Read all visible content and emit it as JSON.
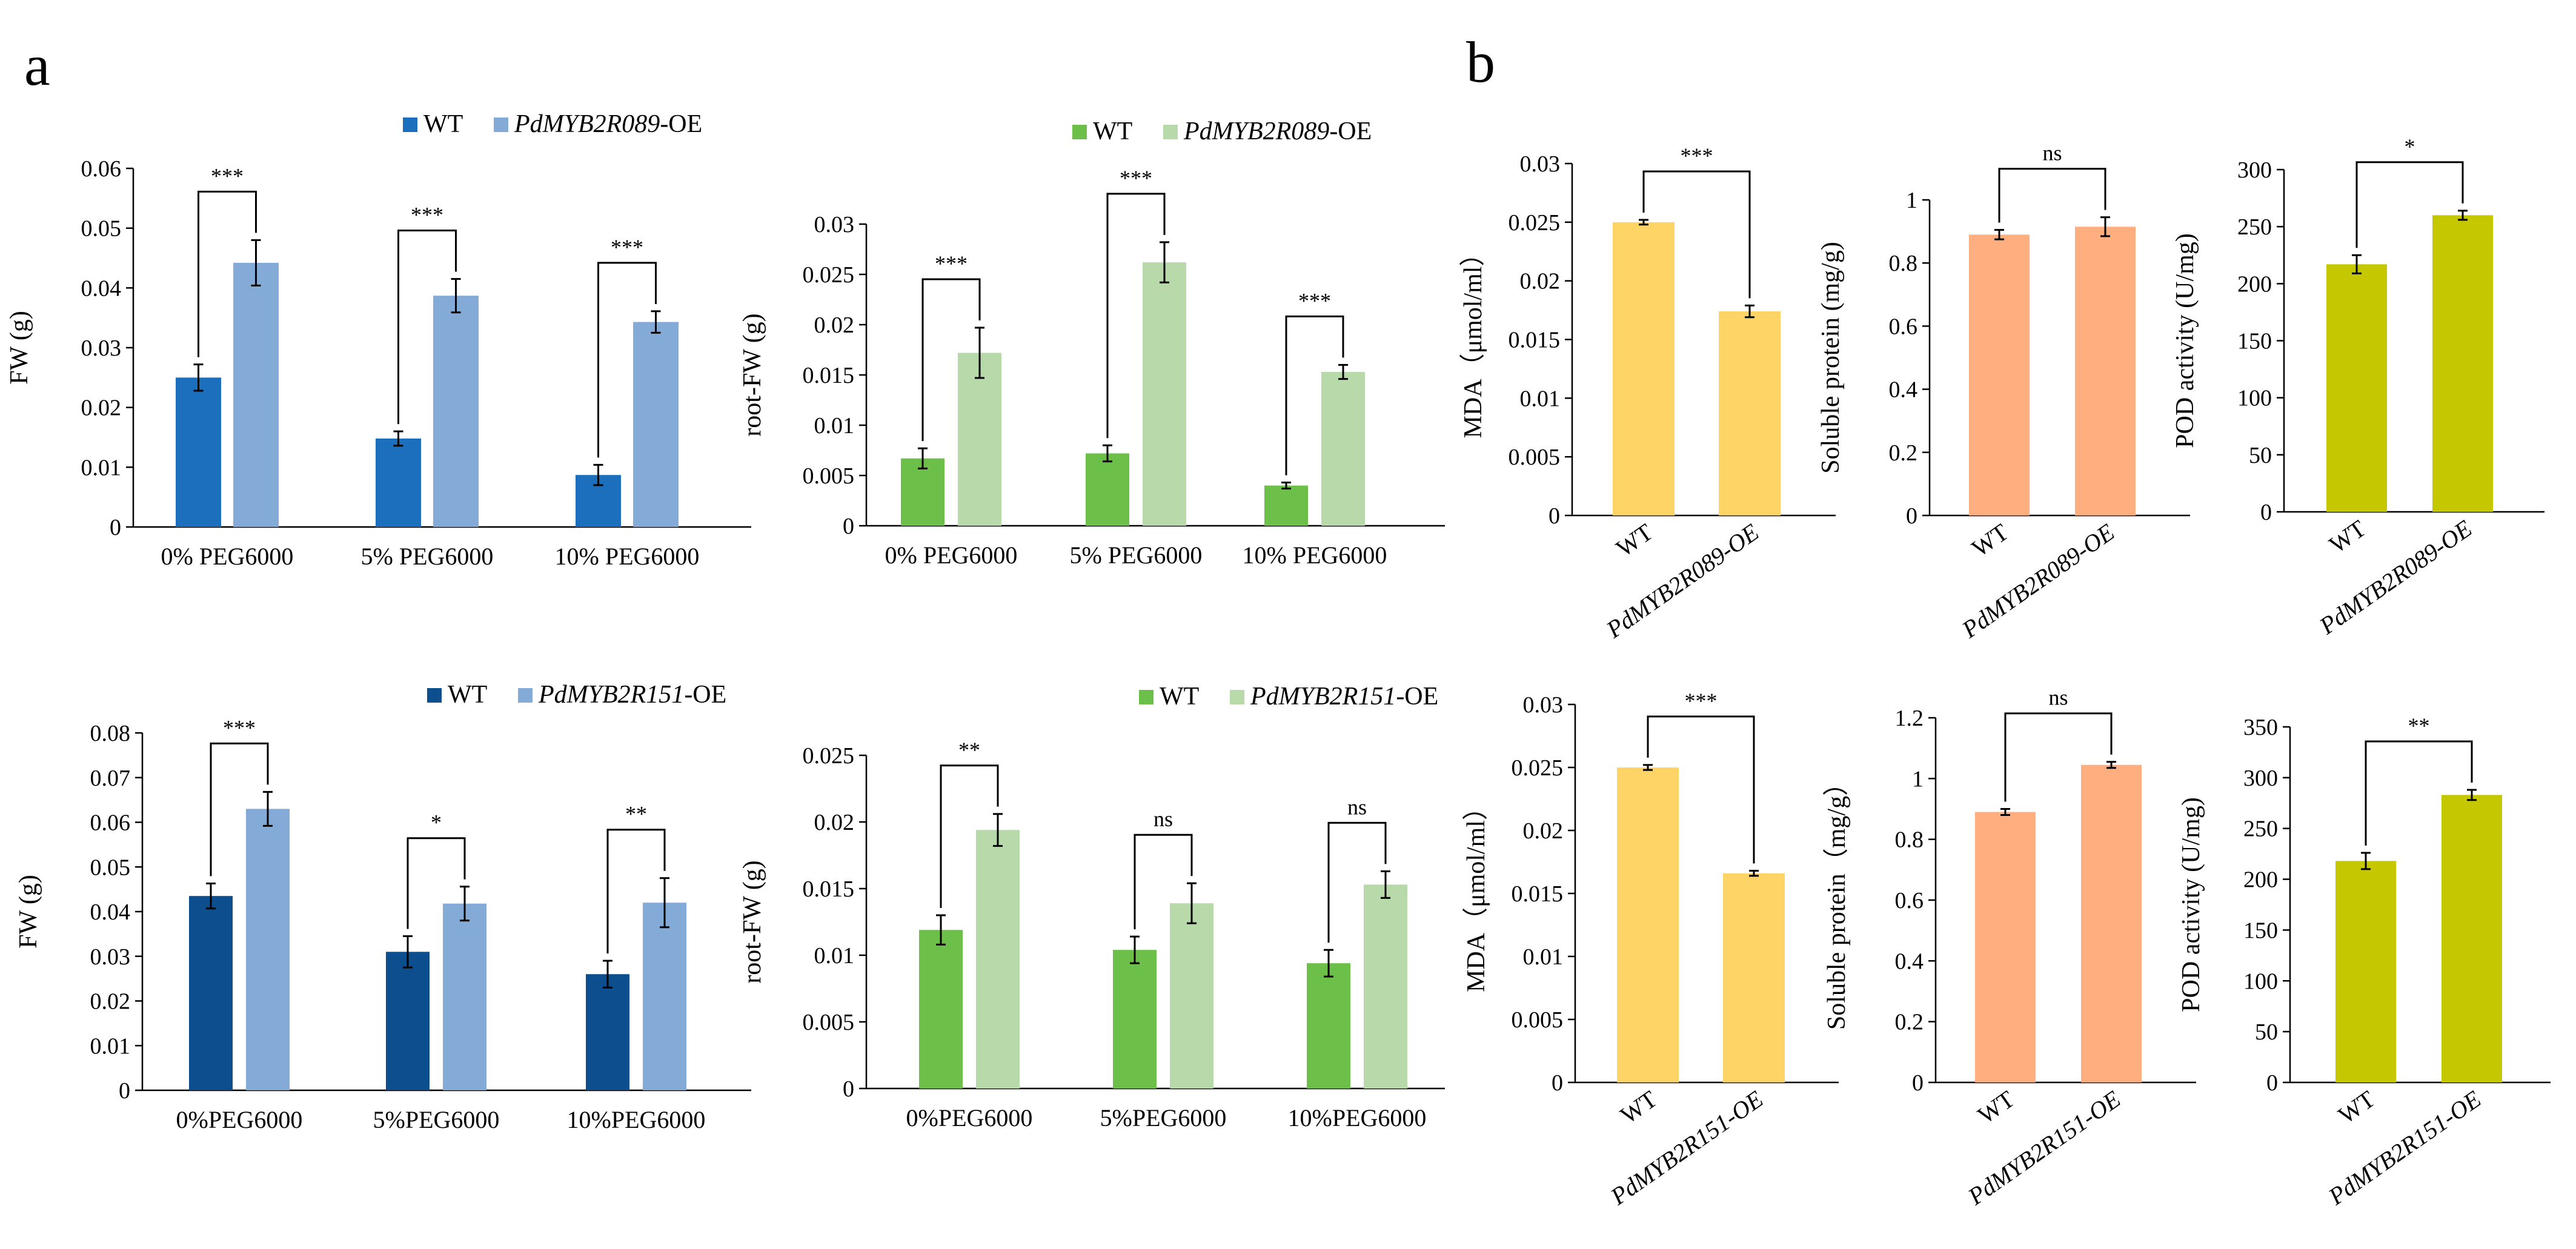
{
  "panel_labels": [
    "a",
    "b"
  ],
  "chart_data": [
    {
      "id": "a1",
      "type": "bar",
      "categories": [
        "0% PEG6000",
        "5% PEG6000",
        "10% PEG6000"
      ],
      "series": [
        {
          "name": "WT",
          "values": [
            0.025,
            0.0148,
            0.0087
          ],
          "errors": [
            0.0022,
            0.0012,
            0.0017
          ],
          "color": "#1C6FBC"
        },
        {
          "name": "PdMYB2R089-OE",
          "name_italic": "PdMYB2R089",
          "name_suffix": "-OE",
          "values": [
            0.0442,
            0.0387,
            0.0343
          ],
          "errors": [
            0.0038,
            0.0028,
            0.0018
          ],
          "color": "#84AAD8"
        }
      ],
      "significance": [
        "***",
        "***",
        "***"
      ],
      "ylabel": "FW (g)",
      "yticks": [
        "0",
        "0.01",
        "0.02",
        "0.03",
        "0.04",
        "0.05",
        "0.06"
      ],
      "ylim": [
        0,
        0.06
      ]
    },
    {
      "id": "a2",
      "type": "bar",
      "categories": [
        "0% PEG6000",
        "5% PEG6000",
        "10% PEG6000"
      ],
      "series": [
        {
          "name": "WT",
          "values": [
            0.0067,
            0.0072,
            0.004
          ],
          "errors": [
            0.001,
            0.0008,
            0.0003
          ],
          "color": "#6CC04A"
        },
        {
          "name": "PdMYB2R089-OE",
          "name_italic": "PdMYB2R089",
          "name_suffix": "-OE",
          "values": [
            0.0172,
            0.0262,
            0.0153
          ],
          "errors": [
            0.0025,
            0.002,
            0.0007
          ],
          "color": "#B8DAAA"
        }
      ],
      "significance": [
        "***",
        "***",
        "***"
      ],
      "ylabel": "root-FW (g)",
      "yticks": [
        "0",
        "0.005",
        "0.01",
        "0.015",
        "0.02",
        "0.025",
        "0.03"
      ],
      "ylim": [
        0,
        0.03
      ]
    },
    {
      "id": "a3",
      "type": "bar",
      "categories": [
        "0%PEG6000",
        "5%PEG6000",
        "10%PEG6000"
      ],
      "series": [
        {
          "name": "WT",
          "values": [
            0.0435,
            0.031,
            0.026
          ],
          "errors": [
            0.0028,
            0.0035,
            0.003
          ],
          "color": "#0D4F8E"
        },
        {
          "name": "PdMYB2R151-OE",
          "name_italic": "PdMYB2R151",
          "name_suffix": "-OE",
          "values": [
            0.063,
            0.0418,
            0.042
          ],
          "errors": [
            0.0038,
            0.0038,
            0.0055
          ],
          "color": "#84AAD8"
        }
      ],
      "significance": [
        "***",
        "*",
        "**"
      ],
      "ylabel": "FW (g)",
      "yticks": [
        "0",
        "0.01",
        "0.02",
        "0.03",
        "0.04",
        "0.05",
        "0.06",
        "0.07",
        "0.08"
      ],
      "ylim": [
        0,
        0.08
      ]
    },
    {
      "id": "a4",
      "type": "bar",
      "categories": [
        "0%PEG6000",
        "5%PEG6000",
        "10%PEG6000"
      ],
      "series": [
        {
          "name": "WT",
          "values": [
            0.0119,
            0.0104,
            0.0094
          ],
          "errors": [
            0.0011,
            0.001,
            0.001
          ],
          "color": "#6CC04A"
        },
        {
          "name": "PdMYB2R151-OE",
          "name_italic": "PdMYB2R151",
          "name_suffix": "-OE",
          "values": [
            0.0194,
            0.0139,
            0.0153
          ],
          "errors": [
            0.0012,
            0.0015,
            0.001
          ],
          "color": "#B8DAAA"
        }
      ],
      "significance": [
        "**",
        "ns",
        "ns"
      ],
      "ylabel": "root-FW (g)",
      "yticks": [
        "0",
        "0.005",
        "0.01",
        "0.015",
        "0.02",
        "0.025"
      ],
      "ylim": [
        0,
        0.025
      ]
    },
    {
      "id": "b1",
      "type": "bar",
      "categories": [
        "WT",
        "PdMYB2R089-OE"
      ],
      "cat_italic": [
        false,
        true
      ],
      "values": [
        0.025,
        0.0174
      ],
      "errors": [
        0.0002,
        0.0005
      ],
      "color": "#FFD466",
      "significance": [
        "***"
      ],
      "ylabel": "MDA（μmol/ml）",
      "yticks": [
        "0",
        "0.005",
        "0.01",
        "0.015",
        "0.02",
        "0.025",
        "0.03"
      ],
      "ylim": [
        0,
        0.03
      ]
    },
    {
      "id": "b2",
      "type": "bar",
      "categories": [
        "WT",
        "PdMYB2R089-OE"
      ],
      "cat_italic": [
        false,
        true
      ],
      "values": [
        0.89,
        0.915
      ],
      "errors": [
        0.015,
        0.03
      ],
      "color": "#FFAE7F",
      "significance": [
        "ns"
      ],
      "ylabel": "Soluble protein (mg/g)",
      "yticks": [
        "0",
        "0.2",
        "0.4",
        "0.6",
        "0.8",
        "1"
      ],
      "ylim": [
        0,
        1.1
      ]
    },
    {
      "id": "b3",
      "type": "bar",
      "categories": [
        "WT",
        "PdMYB2R089-OE"
      ],
      "cat_italic": [
        false,
        true
      ],
      "values": [
        217,
        260
      ],
      "errors": [
        8,
        4
      ],
      "color": "#C5C800",
      "significance": [
        "*"
      ],
      "ylabel": "POD activity (U/mg)",
      "yticks": [
        "0",
        "50",
        "100",
        "150",
        "200",
        "250",
        "300"
      ],
      "ylim": [
        0,
        300
      ]
    },
    {
      "id": "b4",
      "type": "bar",
      "categories": [
        "WT",
        "PdMYB2R151-OE"
      ],
      "cat_italic": [
        false,
        true
      ],
      "values": [
        0.025,
        0.0166
      ],
      "errors": [
        0.0002,
        0.0002
      ],
      "color": "#FFD466",
      "significance": [
        "***"
      ],
      "ylabel": "MDA（μmol/ml）",
      "yticks": [
        "0",
        "0.005",
        "0.01",
        "0.015",
        "0.02",
        "0.025",
        "0.03"
      ],
      "ylim": [
        0,
        0.03
      ]
    },
    {
      "id": "b5",
      "type": "bar",
      "categories": [
        "WT",
        "PdMYB2R151-OE"
      ],
      "cat_italic": [
        false,
        true
      ],
      "values": [
        0.89,
        1.045
      ],
      "errors": [
        0.01,
        0.01
      ],
      "color": "#FFAE7F",
      "significance": [
        "ns"
      ],
      "ylabel": "Soluble protein（mg/g）",
      "yticks": [
        "0",
        "0.2",
        "0.4",
        "0.6",
        "0.8",
        "1",
        "1.2"
      ],
      "ylim": [
        0,
        1.2
      ]
    },
    {
      "id": "b6",
      "type": "bar",
      "categories": [
        "WT",
        "PdMYB2R151-OE"
      ],
      "cat_italic": [
        false,
        true
      ],
      "values": [
        218,
        283
      ],
      "errors": [
        8,
        5
      ],
      "color": "#C5C800",
      "significance": [
        "**"
      ],
      "ylabel": "POD activity (U/mg)",
      "yticks": [
        "0",
        "50",
        "100",
        "150",
        "200",
        "250",
        "300",
        "350"
      ],
      "ylim": [
        0,
        350
      ]
    }
  ]
}
